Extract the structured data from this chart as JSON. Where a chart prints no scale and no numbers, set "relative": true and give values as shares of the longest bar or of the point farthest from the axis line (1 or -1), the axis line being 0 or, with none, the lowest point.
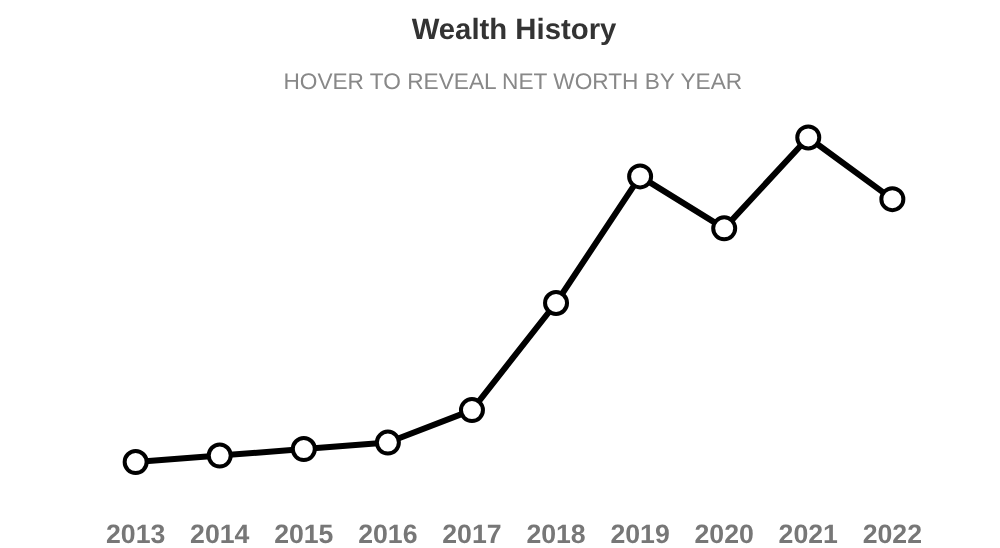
{
  "chart_data": {
    "type": "line",
    "title": "Wealth History",
    "subtitle": "HOVER TO REVEAL NET WORTH BY YEAR",
    "relative": true,
    "categories": [
      "2013",
      "2014",
      "2015",
      "2016",
      "2017",
      "2018",
      "2019",
      "2020",
      "2021",
      "2022"
    ],
    "series": [
      {
        "color": "#000000",
        "values": [
          0,
          0.02,
          0.04,
          0.06,
          0.16,
          0.49,
          0.88,
          0.72,
          1,
          0.81
        ]
      }
    ],
    "marker": "circle",
    "grid": false
  }
}
